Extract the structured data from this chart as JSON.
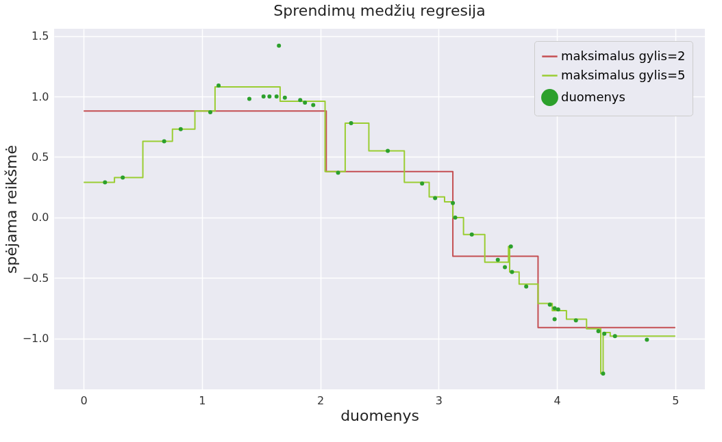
{
  "chart_data": {
    "type": "step",
    "title": "Sprendimų medžių regresija",
    "xlabel": "duomenys",
    "ylabel": "spėjama reikšmė",
    "xlim": [
      -0.25,
      5.25
    ],
    "ylim": [
      -1.42,
      1.56
    ],
    "xticks": [
      0,
      1,
      2,
      3,
      4,
      5
    ],
    "yticks": [
      {
        "value": -1,
        "label": "−1.0"
      },
      {
        "value": -0.5,
        "label": "−0.5"
      },
      {
        "value": 0,
        "label": "0.0"
      },
      {
        "value": 0.5,
        "label": "0.5"
      },
      {
        "value": 1,
        "label": "1.0"
      },
      {
        "value": 1.5,
        "label": "1.5"
      }
    ],
    "grid": true,
    "legend": "top right",
    "series": [
      {
        "name": "maksimalus gylis=2",
        "color": "#c44e52",
        "x": [
          0,
          2.05,
          3.12,
          3.84,
          5
        ],
        "values": [
          0.88,
          0.38,
          -0.32,
          -0.91,
          -0.91
        ]
      },
      {
        "name": "maksimalus gylis=5",
        "color": "#9acd32",
        "x": [
          0,
          0.26,
          0.5,
          0.75,
          0.94,
          1.11,
          1.66,
          2.04,
          2.21,
          2.41,
          2.71,
          2.92,
          3.05,
          3.12,
          3.21,
          3.39,
          3.59,
          3.6,
          3.68,
          3.84,
          3.96,
          4.08,
          4.25,
          4.37,
          4.39,
          4.45,
          5
        ],
        "values": [
          0.29,
          0.33,
          0.63,
          0.73,
          0.88,
          1.08,
          0.96,
          0.38,
          0.78,
          0.55,
          0.29,
          0.17,
          0.13,
          0,
          -0.14,
          -0.37,
          -0.24,
          -0.45,
          -0.55,
          -0.71,
          -0.77,
          -0.84,
          -0.92,
          -1.29,
          -0.95,
          -0.98,
          -0.98
        ]
      },
      {
        "name": "duomenys",
        "type": "scatter",
        "color": "#2ca02c",
        "marker": "circle",
        "x": [
          0.18,
          0.33,
          0.68,
          0.82,
          1.07,
          1.14,
          1.4,
          1.52,
          1.57,
          1.63,
          1.65,
          1.7,
          1.83,
          1.87,
          1.94,
          2.15,
          2.26,
          2.57,
          2.86,
          2.97,
          3.12,
          3.14,
          3.28,
          3.5,
          3.56,
          3.61,
          3.62,
          3.74,
          3.94,
          3.98,
          4.01,
          3.98,
          4.16,
          4.35,
          4.39,
          4.4,
          4.49,
          4.76
        ],
        "values": [
          0.29,
          0.33,
          0.63,
          0.73,
          0.87,
          1.09,
          0.98,
          1,
          1,
          1,
          1.42,
          0.99,
          0.97,
          0.95,
          0.93,
          0.37,
          0.78,
          0.55,
          0.28,
          0.16,
          0.12,
          0,
          -0.14,
          -0.35,
          -0.41,
          -0.24,
          -0.45,
          -0.57,
          -0.72,
          -0.75,
          -0.76,
          -0.84,
          -0.85,
          -0.94,
          -1.29,
          -0.96,
          -0.98,
          -1.01
        ]
      }
    ]
  }
}
